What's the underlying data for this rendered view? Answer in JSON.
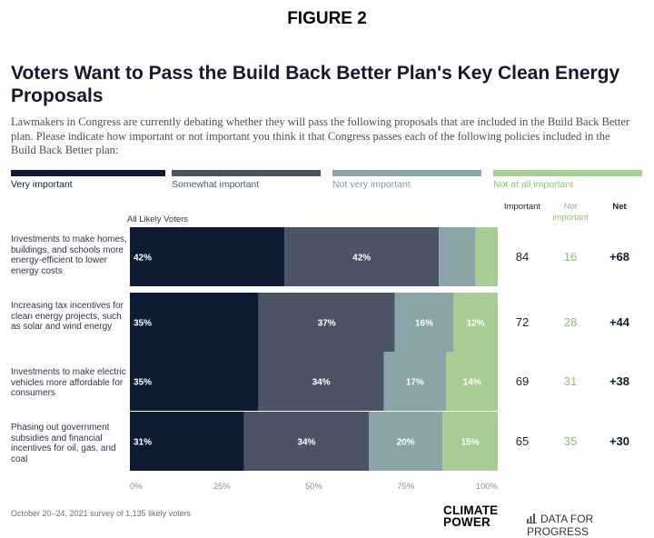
{
  "figure_label": "FIGURE 2",
  "title": "Voters Want to Pass the Build Back Better Plan's Key Clean Energy Proposals",
  "subtitle": "Lawmakers in Congress are currently debating whether they will pass the following proposals that are included in the Build Back Better plan. Please indicate how important or not important you think it that Congress passes each of the following policies included in the Build Back Better plan:",
  "legend": [
    {
      "label": "Very important",
      "color": "#0f1b33",
      "text_color": "#0f1b33"
    },
    {
      "label": "Somewhat important",
      "color": "#4a5464",
      "text_color": "#4a5464"
    },
    {
      "label": "Not very important",
      "color": "#8aa4a8",
      "text_color": "#7f9a9e"
    },
    {
      "label": "Not at all important",
      "color": "#a8cc93",
      "text_color": "#8dbf76"
    }
  ],
  "group_label": "All Likely Voters",
  "columns": {
    "important": "Important",
    "not_important": "Not important",
    "net": "Net"
  },
  "footer": "October 20–24, 2021 survey of 1,135 likely voters",
  "logos": {
    "climate_power_line1": "CLIMATE",
    "climate_power_line2": "POWER",
    "data_for_progress": "DATA FOR PROGRESS"
  },
  "chart_data": {
    "type": "bar",
    "orientation": "horizontal-stacked",
    "categories": [
      "Investments to make homes, buildings, and schools more energy-efficient to lower energy costs",
      "Increasing tax incentives for clean energy projects, such as solar and wind energy",
      "Investments to make electric vehicles more affordable for consumers",
      "Phasing out government subsidies and financial incentives for oil, gas, and coal"
    ],
    "series": [
      {
        "name": "Very important",
        "values": [
          42,
          35,
          35,
          31
        ],
        "labels": [
          "42%",
          "35%",
          "35%",
          "31%"
        ]
      },
      {
        "name": "Somewhat important",
        "values": [
          42,
          37,
          34,
          34
        ],
        "labels": [
          "42%",
          "37%",
          "34%",
          "34%"
        ]
      },
      {
        "name": "Not very important",
        "values": [
          10,
          16,
          17,
          20
        ],
        "labels": [
          "",
          "16%",
          "17%",
          "20%"
        ]
      },
      {
        "name": "Not at all important",
        "values": [
          6,
          12,
          14,
          15
        ],
        "labels": [
          "",
          "12%",
          "14%",
          "15%"
        ]
      }
    ],
    "important": [
      84,
      72,
      69,
      65
    ],
    "not_important": [
      16,
      28,
      31,
      35
    ],
    "net": [
      "+68",
      "+44",
      "+38",
      "+30"
    ],
    "xlim": [
      0,
      100
    ],
    "xticks": [
      "0%",
      "25%",
      "50%",
      "75%",
      "100%"
    ],
    "xtick_values": [
      0,
      25,
      50,
      75,
      100
    ],
    "legend_position": "top"
  }
}
